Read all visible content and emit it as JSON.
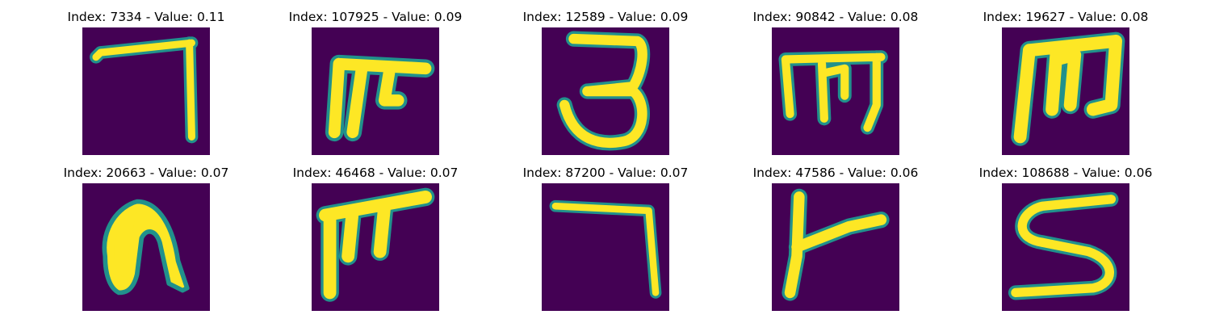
{
  "panels": [
    {
      "title": "Index: 7334 - Value: 0.11",
      "glyph": "seven-like-stroke-icon",
      "colors": {
        "bg": "#440154",
        "stroke": "#fde725",
        "edge": "#21918c"
      }
    },
    {
      "title": "Index: 107925 - Value: 0.09",
      "glyph": "pi-like-stroke-icon",
      "colors": {
        "bg": "#440154",
        "stroke": "#fde725",
        "edge": "#21918c"
      }
    },
    {
      "title": "Index: 12589 - Value: 0.09",
      "glyph": "three-like-stroke-icon",
      "colors": {
        "bg": "#440154",
        "stroke": "#fde725",
        "edge": "#21918c"
      }
    },
    {
      "title": "Index: 90842 - Value: 0.08",
      "glyph": "m-like-stroke-icon",
      "colors": {
        "bg": "#440154",
        "stroke": "#fde725",
        "edge": "#21918c"
      }
    },
    {
      "title": "Index: 19627 - Value: 0.08",
      "glyph": "m-like-bold-stroke-icon",
      "colors": {
        "bg": "#440154",
        "stroke": "#fde725",
        "edge": "#21918c"
      }
    },
    {
      "title": "Index: 20663 - Value: 0.07",
      "glyph": "n-like-blob-icon",
      "colors": {
        "bg": "#440154",
        "stroke": "#fde725",
        "edge": "#21918c"
      }
    },
    {
      "title": "Index: 46468 - Value: 0.07",
      "glyph": "f-like-stroke-icon",
      "colors": {
        "bg": "#440154",
        "stroke": "#fde725",
        "edge": "#21918c"
      }
    },
    {
      "title": "Index: 87200 - Value: 0.07",
      "glyph": "seven-like-thin-stroke-icon",
      "colors": {
        "bg": "#440154",
        "stroke": "#fde725",
        "edge": "#21918c"
      }
    },
    {
      "title": "Index: 47586 - Value: 0.06",
      "glyph": "y-like-stroke-icon",
      "colors": {
        "bg": "#440154",
        "stroke": "#fde725",
        "edge": "#21918c"
      }
    },
    {
      "title": "Index: 108688 - Value: 0.06",
      "glyph": "s-like-stroke-icon",
      "colors": {
        "bg": "#440154",
        "stroke": "#fde725",
        "edge": "#21918c"
      }
    }
  ]
}
